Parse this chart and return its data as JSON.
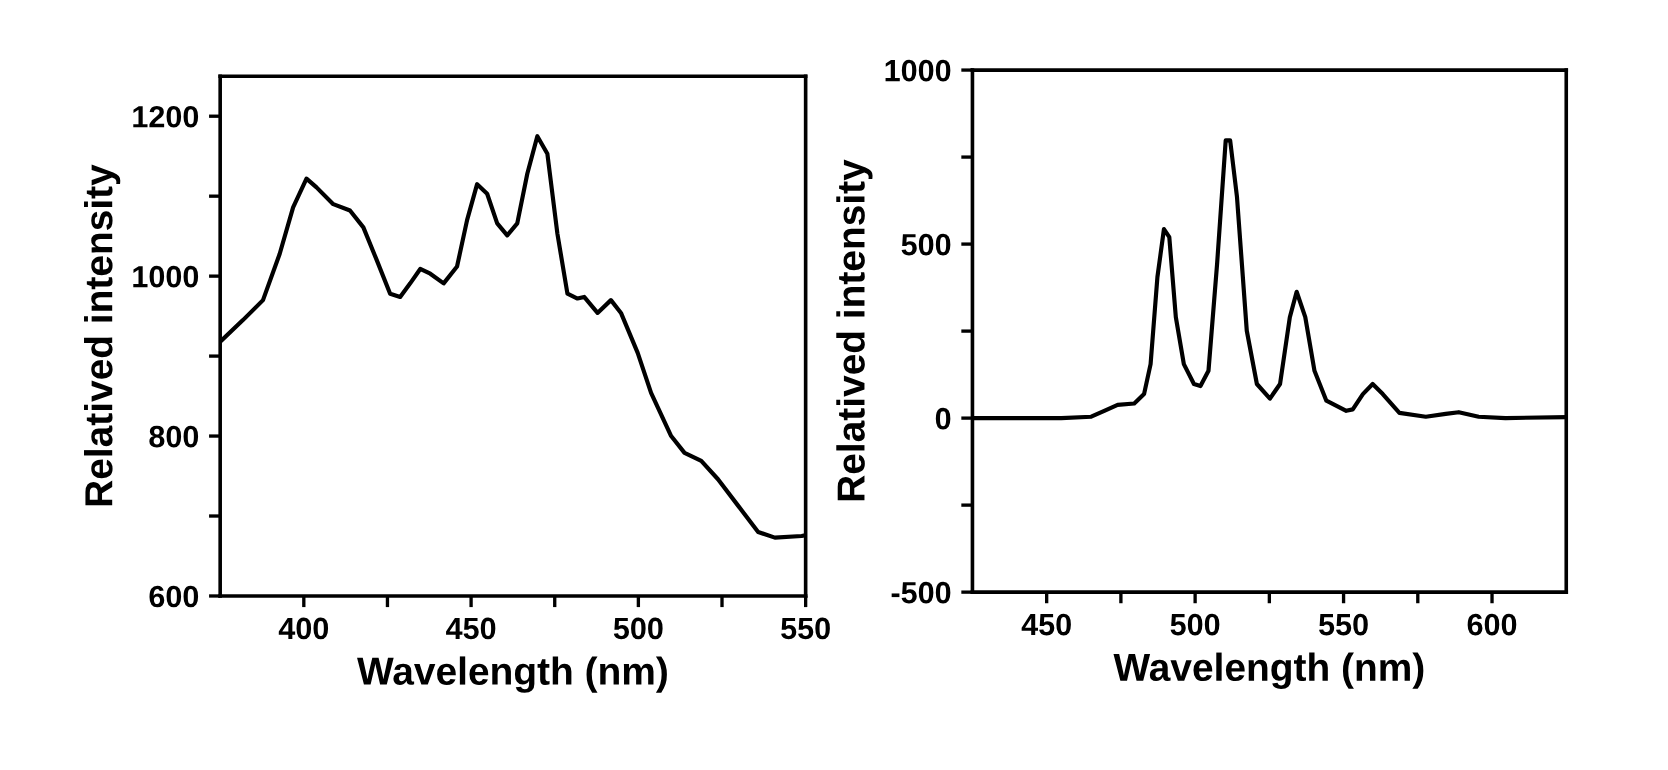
{
  "chart_data": [
    {
      "type": "line",
      "xlabel": "Wavelength (nm)",
      "ylabel": "Relatived intensity",
      "xlim": [
        375,
        550
      ],
      "ylim": [
        600,
        1250
      ],
      "xticks": [
        400,
        {
          "value": 425,
          "label": null
        },
        450,
        {
          "value": 475,
          "label": null
        },
        500,
        {
          "value": 525,
          "label": null
        },
        550
      ],
      "yticks": [
        600,
        {
          "value": 700,
          "label": null
        },
        800,
        {
          "value": 900,
          "label": null
        },
        1000,
        {
          "value": 1100,
          "label": null
        },
        1200
      ],
      "series": [
        {
          "color": "#000000",
          "x": [
            375,
            381.8,
            387.8,
            392.8,
            396.8,
            400.8,
            403.8,
            408.8,
            413.8,
            417.8,
            421.8,
            425.8,
            428.8,
            431.8,
            434.8,
            437.8,
            441.8,
            445.8,
            448.8,
            451.8,
            454.8,
            457.8,
            460.8,
            463.8,
            466.8,
            469.8,
            472.8,
            475.8,
            478.8,
            481.8,
            483.8,
            487.8,
            491.8,
            494.8,
            499.8,
            503.8,
            509.8,
            513.8,
            518.8,
            523.8,
            529.8,
            535.8,
            540.8,
            548.8,
            550
          ],
          "values": [
            918,
            945,
            970,
            1028,
            1086,
            1122,
            1111,
            1090,
            1082,
            1061,
            1020,
            978,
            974,
            991,
            1009,
            1003,
            991,
            1012,
            1070,
            1115,
            1103,
            1066,
            1051,
            1066,
            1128,
            1175,
            1153,
            1053,
            978,
            972,
            974,
            954,
            970,
            954,
            904,
            854,
            800,
            779,
            769,
            746,
            713,
            680,
            673,
            675,
            676
          ]
        }
      ]
    },
    {
      "type": "line",
      "xlabel": "Wavelength (nm)",
      "ylabel": "Relatived intensity",
      "xlim": [
        425,
        625
      ],
      "ylim": [
        -500,
        1000
      ],
      "xticks": [
        450,
        {
          "value": 475,
          "label": null
        },
        500,
        {
          "value": 525,
          "label": null
        },
        550,
        {
          "value": 575,
          "label": null
        },
        600
      ],
      "yticks": [
        -500,
        {
          "value": -250,
          "label": null
        },
        0,
        {
          "value": 250,
          "label": null
        },
        500,
        {
          "value": 750,
          "label": null
        },
        1000
      ],
      "series": [
        {
          "color": "#000000",
          "x": [
            425,
            454.9,
            465,
            469.4,
            473.9,
            479.5,
            482.8,
            485,
            487.3,
            489.5,
            491.3,
            493.5,
            496.2,
            499.6,
            501.8,
            504.5,
            507.4,
            510.3,
            511.8,
            514.1,
            517.4,
            520.8,
            525.2,
            528.6,
            531.9,
            534.2,
            537.1,
            540.2,
            544.2,
            550.9,
            553.1,
            556.5,
            559.8,
            563.2,
            568.8,
            577.7,
            584.4,
            588.8,
            595.5,
            604.5,
            625
          ],
          "values": [
            0,
            0,
            4,
            21,
            38,
            42,
            69,
            155,
            405,
            543,
            520,
            290,
            155,
            98,
            92,
            136,
            443,
            798,
            798,
            635,
            251,
            98,
            56,
            98,
            290,
            363,
            290,
            136,
            50,
            21,
            25,
            69,
            98,
            69,
            15,
            4,
            12,
            17,
            4,
            0,
            3
          ]
        }
      ]
    }
  ]
}
